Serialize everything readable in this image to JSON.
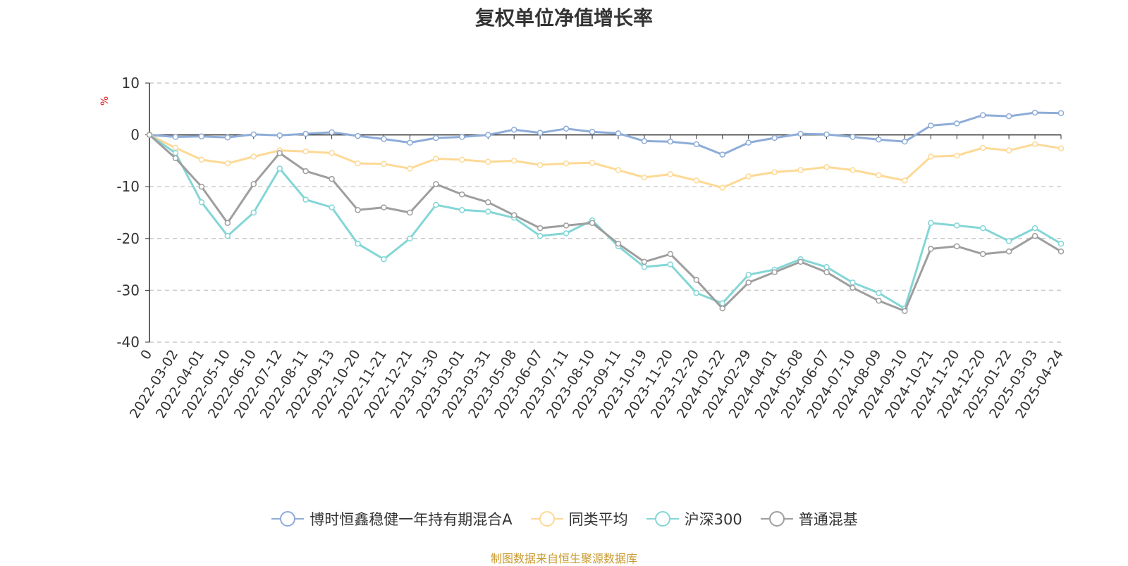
{
  "colors": {
    "s1": "#8eacd8",
    "s2": "#fdd995",
    "s3": "#84d6d6",
    "s4": "#9e9e9e",
    "grid": "#cccccc",
    "axis": "#333333",
    "source": "#c99a2e"
  },
  "chart_data": {
    "type": "line",
    "title": "复权单位净值增长率",
    "ylabel": "%",
    "ylim": [
      -40,
      10
    ],
    "yticks": [
      10,
      0,
      -10,
      -20,
      -30,
      -40
    ],
    "grid": true,
    "legend": "bottom",
    "x_labels": [
      "0",
      "2022-03-02",
      "2022-04-01",
      "2022-05-10",
      "2022-06-10",
      "2022-07-12",
      "2022-08-11",
      "2022-09-13",
      "2022-10-20",
      "2022-11-21",
      "2022-12-21",
      "2023-01-30",
      "2023-03-01",
      "2023-03-31",
      "2023-05-08",
      "2023-06-07",
      "2023-07-11",
      "2023-08-10",
      "2023-09-11",
      "2023-10-19",
      "2023-11-20",
      "2023-12-20",
      "2024-01-22",
      "2024-02-29",
      "2024-04-01",
      "2024-05-08",
      "2024-06-07",
      "2024-07-10",
      "2024-08-09",
      "2024-09-10",
      "2024-10-21",
      "2024-11-20",
      "2024-12-20",
      "2025-01-22",
      "2025-03-03",
      "2025-04-24"
    ],
    "series": [
      {
        "name": "博时恒鑫稳健一年持有期混合A",
        "color_key": "s1",
        "values": [
          0,
          -0.4,
          -0.3,
          -0.5,
          0.1,
          -0.1,
          0.2,
          0.5,
          -0.2,
          -0.8,
          -1.5,
          -0.6,
          -0.4,
          0,
          1.0,
          0.4,
          1.2,
          0.6,
          0.3,
          -1.2,
          -1.3,
          -1.8,
          -3.8,
          -1.5,
          -0.6,
          0.2,
          0.1,
          -0.4,
          -0.9,
          -1.3,
          1.8,
          2.2,
          3.8,
          3.6,
          4.3,
          4.2
        ]
      },
      {
        "name": "同类平均",
        "color_key": "s2",
        "values": [
          0,
          -2.5,
          -4.8,
          -5.5,
          -4.2,
          -3.0,
          -3.2,
          -3.5,
          -5.5,
          -5.6,
          -6.5,
          -4.6,
          -4.8,
          -5.2,
          -5.0,
          -5.8,
          -5.5,
          -5.4,
          -6.8,
          -8.2,
          -7.6,
          -8.8,
          -10.2,
          -8.0,
          -7.2,
          -6.8,
          -6.2,
          -6.8,
          -7.8,
          -8.8,
          -4.2,
          -4.0,
          -2.5,
          -3.0,
          -1.8,
          -2.6
        ]
      },
      {
        "name": "沪深300",
        "color_key": "s3",
        "values": [
          0,
          -3.5,
          -13.0,
          -19.5,
          -15.0,
          -6.5,
          -12.5,
          -14.0,
          -21.0,
          -24.0,
          -20.0,
          -13.5,
          -14.5,
          -14.8,
          -16.0,
          -19.5,
          -19.0,
          -16.5,
          -21.5,
          -25.5,
          -25.0,
          -30.5,
          -32.5,
          -27.0,
          -26.0,
          -24.0,
          -25.5,
          -28.5,
          -30.5,
          -33.5,
          -17.0,
          -17.5,
          -18.0,
          -20.5,
          -18.0,
          -21.0
        ]
      },
      {
        "name": "普通混基",
        "color_key": "s4",
        "values": [
          0,
          -4.5,
          -10.0,
          -17.0,
          -9.5,
          -3.5,
          -7.0,
          -8.5,
          -14.5,
          -14.0,
          -15.0,
          -9.5,
          -11.5,
          -13.0,
          -15.5,
          -18.0,
          -17.5,
          -17.0,
          -21.0,
          -24.5,
          -23.0,
          -28.0,
          -33.5,
          -28.5,
          -26.5,
          -24.5,
          -26.5,
          -29.5,
          -32.0,
          -34.0,
          -22.0,
          -21.5,
          -23.0,
          -22.5,
          -19.5,
          -22.5
        ]
      }
    ]
  },
  "source_text": "制图数据来自恒生聚源数据库"
}
